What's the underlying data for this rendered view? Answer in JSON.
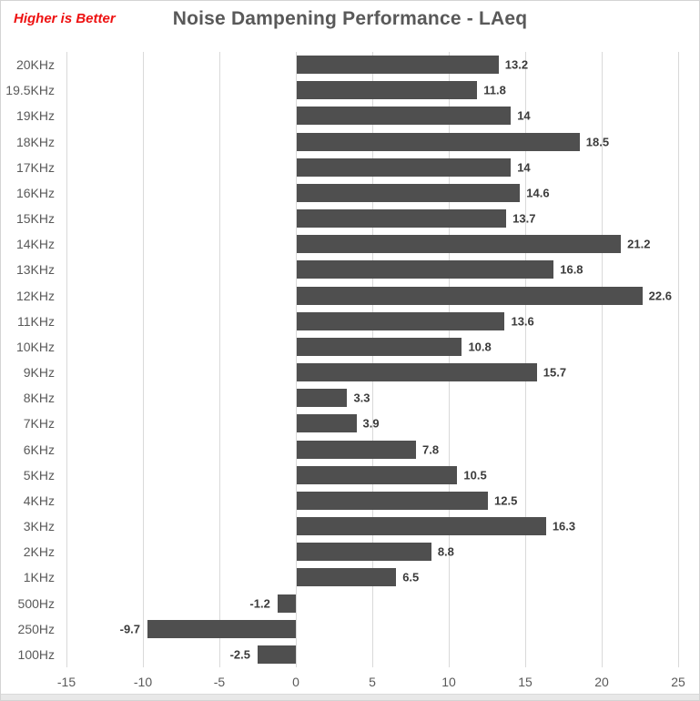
{
  "annotation": {
    "text": "Higher is Better",
    "color": "#EE1111"
  },
  "chart_data": {
    "type": "bar",
    "orientation": "horizontal",
    "title": "Noise Dampening Performance - LAeq",
    "categories": [
      "20KHz",
      "19.5KHz",
      "19KHz",
      "18KHz",
      "17KHz",
      "16KHz",
      "15KHz",
      "14KHz",
      "13KHz",
      "12KHz",
      "11KHz",
      "10KHz",
      "9KHz",
      "8KHz",
      "7KHz",
      "6KHz",
      "5KHz",
      "4KHz",
      "3KHz",
      "2KHz",
      "1KHz",
      "500Hz",
      "250Hz",
      "100Hz"
    ],
    "values": [
      13.2,
      11.8,
      14,
      18.5,
      14,
      14.6,
      13.7,
      21.2,
      16.8,
      22.6,
      13.6,
      10.8,
      15.7,
      3.3,
      3.9,
      7.8,
      10.5,
      12.5,
      16.3,
      8.8,
      6.5,
      -1.2,
      -9.7,
      -2.5
    ],
    "data_labels": [
      "13.2",
      "11.8",
      "14",
      "18.5",
      "14",
      "14.6",
      "13.7",
      "21.2",
      "16.8",
      "22.6",
      "13.6",
      "10.8",
      "15.7",
      "3.3",
      "3.9",
      "7.8",
      "10.5",
      "12.5",
      "16.3",
      "8.8",
      "6.5",
      "-1.2",
      "-9.7",
      "-2.5"
    ],
    "xlabel": "",
    "ylabel": "",
    "xlim": [
      -15,
      25
    ],
    "x_ticks": [
      -15,
      -10,
      -5,
      0,
      5,
      10,
      15,
      20,
      25
    ],
    "grid": true,
    "legend": false,
    "bar_color": "#4F4F4F",
    "gridline_color": "#D9D9D9",
    "axis_label_color": "#595959"
  }
}
